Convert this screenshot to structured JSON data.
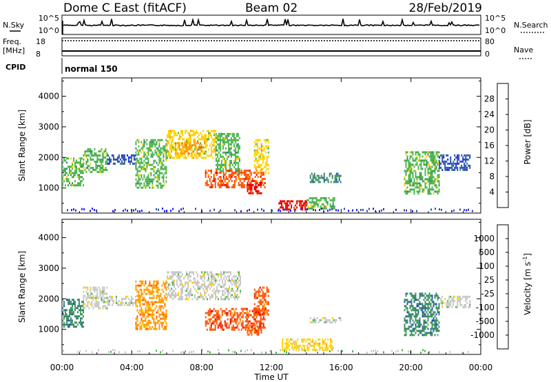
{
  "header": {
    "station": "Dome C East (fitACF)",
    "beam": "Beam 02",
    "date": "28/Feb/2019"
  },
  "aux": {
    "nsky_label": "N.Sky",
    "nsky_top": "10^5",
    "nsky_bottom": "10^0",
    "nsearch_label": "N.Search",
    "nsearch_top": "10^5",
    "nsearch_bottom": "10^0",
    "freq_label": "Freq.",
    "freq_unit": "[MHz]",
    "freq_top": "18",
    "freq_bottom": "8",
    "nave_label": "Nave",
    "nave_top": "80",
    "nave_bottom": "0",
    "cpid_label": "CPID",
    "cpid_value": "normal 150"
  },
  "colors": {
    "power": [
      "#1a1aff",
      "#2a4db5",
      "#3a8a6a",
      "#4bb54b",
      "#ffd200",
      "#ff9a00",
      "#ff5000",
      "#e60000"
    ],
    "velocity": [
      "#e60000",
      "#ff5000",
      "#ff9a00",
      "#ffd200",
      "#c8c8c8",
      "#4bb54b",
      "#3a8a6a",
      "#2a4db5",
      "#1a1aff"
    ]
  },
  "chart_data": [
    {
      "type": "heatmap",
      "parameter": "power",
      "ylabel": "Slant Range [km]",
      "xlabel": "Time UT",
      "x_ticks": [
        "00:00",
        "04:00",
        "08:00",
        "12:00",
        "16:00",
        "20:00",
        "00:00"
      ],
      "y_ticks": [
        1000,
        2000,
        3000,
        4000
      ],
      "ylim": [
        180,
        4600
      ],
      "xlim_hours": [
        0,
        24
      ],
      "colorbar": {
        "label": "Power [dB]",
        "ticks": [
          4,
          8,
          12,
          16,
          20,
          24,
          28
        ],
        "range": [
          0,
          32
        ]
      },
      "regions": [
        {
          "t0": 0.0,
          "t1": 1.2,
          "r0": 1100,
          "r1": 2000,
          "level": 3
        },
        {
          "t0": 1.2,
          "t1": 2.6,
          "r0": 1500,
          "r1": 2300,
          "level": 3
        },
        {
          "t0": 2.6,
          "t1": 4.2,
          "r0": 1800,
          "r1": 2100,
          "level": 1
        },
        {
          "t0": 4.2,
          "t1": 6.0,
          "r0": 1000,
          "r1": 2600,
          "level": 3
        },
        {
          "t0": 6.0,
          "t1": 8.8,
          "r0": 2000,
          "r1": 2900,
          "level": 4
        },
        {
          "t0": 6.6,
          "t1": 8.0,
          "r0": 2100,
          "r1": 2500,
          "level": 5
        },
        {
          "t0": 8.8,
          "t1": 10.2,
          "r0": 1500,
          "r1": 2800,
          "level": 3
        },
        {
          "t0": 8.2,
          "t1": 11.6,
          "r0": 1000,
          "r1": 1600,
          "level": 6
        },
        {
          "t0": 10.6,
          "t1": 11.4,
          "r0": 800,
          "r1": 1200,
          "level": 7
        },
        {
          "t0": 11.0,
          "t1": 11.8,
          "r0": 1500,
          "r1": 2600,
          "level": 4
        },
        {
          "t0": 12.4,
          "t1": 14.0,
          "r0": 300,
          "r1": 600,
          "level": 7
        },
        {
          "t0": 14.0,
          "t1": 15.6,
          "r0": 350,
          "r1": 700,
          "level": 3
        },
        {
          "t0": 14.2,
          "t1": 16.0,
          "r0": 1200,
          "r1": 1500,
          "level": 2
        },
        {
          "t0": 19.6,
          "t1": 21.6,
          "r0": 800,
          "r1": 2200,
          "level": 3
        },
        {
          "t0": 21.6,
          "t1": 23.4,
          "r0": 1600,
          "r1": 2100,
          "level": 1
        }
      ]
    },
    {
      "type": "heatmap",
      "parameter": "velocity",
      "ylabel": "Slant Range [km]",
      "xlabel": "Time UT",
      "x_ticks": [
        "00:00",
        "04:00",
        "08:00",
        "12:00",
        "16:00",
        "20:00",
        "00:00"
      ],
      "y_ticks": [
        1000,
        2000,
        3000,
        4000
      ],
      "ylim": [
        180,
        4600
      ],
      "xlim_hours": [
        0,
        24
      ],
      "colorbar": {
        "label": "Velocity [m s^-1]",
        "ticks": [
          "1000",
          "500",
          "100",
          "25",
          "-25",
          "-100",
          "-500",
          "-1000"
        ]
      },
      "regions": [
        {
          "t0": 0.0,
          "t1": 1.2,
          "r0": 1100,
          "r1": 2000,
          "level": 6
        },
        {
          "t0": 1.2,
          "t1": 2.6,
          "r0": 1700,
          "r1": 2400,
          "level": 4
        },
        {
          "t0": 2.6,
          "t1": 4.2,
          "r0": 1800,
          "r1": 2100,
          "level": 4
        },
        {
          "t0": 4.2,
          "t1": 6.0,
          "r0": 1000,
          "r1": 2600,
          "level": 2
        },
        {
          "t0": 6.0,
          "t1": 10.2,
          "r0": 2000,
          "r1": 2900,
          "level": 4
        },
        {
          "t0": 8.2,
          "t1": 11.6,
          "r0": 1000,
          "r1": 1700,
          "level": 1
        },
        {
          "t0": 10.6,
          "t1": 11.4,
          "r0": 800,
          "r1": 1200,
          "level": 1
        },
        {
          "t0": 11.0,
          "t1": 11.8,
          "r0": 1500,
          "r1": 2400,
          "level": 1
        },
        {
          "t0": 12.6,
          "t1": 15.6,
          "r0": 300,
          "r1": 700,
          "level": 3
        },
        {
          "t0": 14.2,
          "t1": 16.0,
          "r0": 1200,
          "r1": 1400,
          "level": 4
        },
        {
          "t0": 19.6,
          "t1": 21.6,
          "r0": 800,
          "r1": 2200,
          "level": 6
        },
        {
          "t0": 21.6,
          "t1": 23.4,
          "r0": 1700,
          "r1": 2100,
          "level": 4
        }
      ]
    }
  ]
}
